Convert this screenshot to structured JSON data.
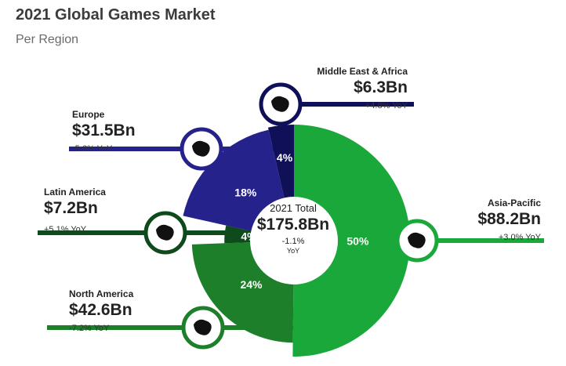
{
  "header": {
    "title": "2021 Global Games Market",
    "subtitle": "Per Region"
  },
  "center": {
    "title": "2021 Total",
    "value": "$175.8Bn",
    "yoy": "-1.1%",
    "yoy_suffix": "YoY"
  },
  "chart_data": {
    "type": "pie",
    "title": "2021 Global Games Market",
    "subtitle": "Per Region",
    "total": {
      "label": "2021 Total",
      "value": "$175.8Bn",
      "yoy": "-1.1% YoY"
    },
    "slices": [
      {
        "name": "Asia-Pacific",
        "value_bn": 88.2,
        "value_label": "$88.2Bn",
        "share": 50,
        "share_label": "50%",
        "yoy": "+3.0% YoY",
        "color": "#1aa83a",
        "icon": "asia-pacific-map-icon"
      },
      {
        "name": "North America",
        "value_bn": 42.6,
        "value_label": "$42.6Bn",
        "share": 24,
        "share_label": "24%",
        "yoy": "-7.2% YoY",
        "color": "#1e7f2a",
        "icon": "north-america-map-icon"
      },
      {
        "name": "Latin America",
        "value_bn": 7.2,
        "value_label": "$7.2Bn",
        "share": 4,
        "share_label": "4%",
        "yoy": "+5.1% YoY",
        "color": "#0f4a1c",
        "icon": "latin-america-map-icon"
      },
      {
        "name": "Europe",
        "value_bn": 31.5,
        "value_label": "$31.5Bn",
        "share": 18,
        "share_label": "18%",
        "yoy": "-5.6% YoY",
        "color": "#25228c",
        "icon": "europe-map-icon"
      },
      {
        "name": "Middle East & Africa",
        "value_bn": 6.3,
        "value_label": "$6.3Bn",
        "share": 4,
        "share_label": "4%",
        "yoy": "+4.8% YoY",
        "color": "#0f1058",
        "icon": "middle-east-africa-map-icon"
      }
    ]
  }
}
